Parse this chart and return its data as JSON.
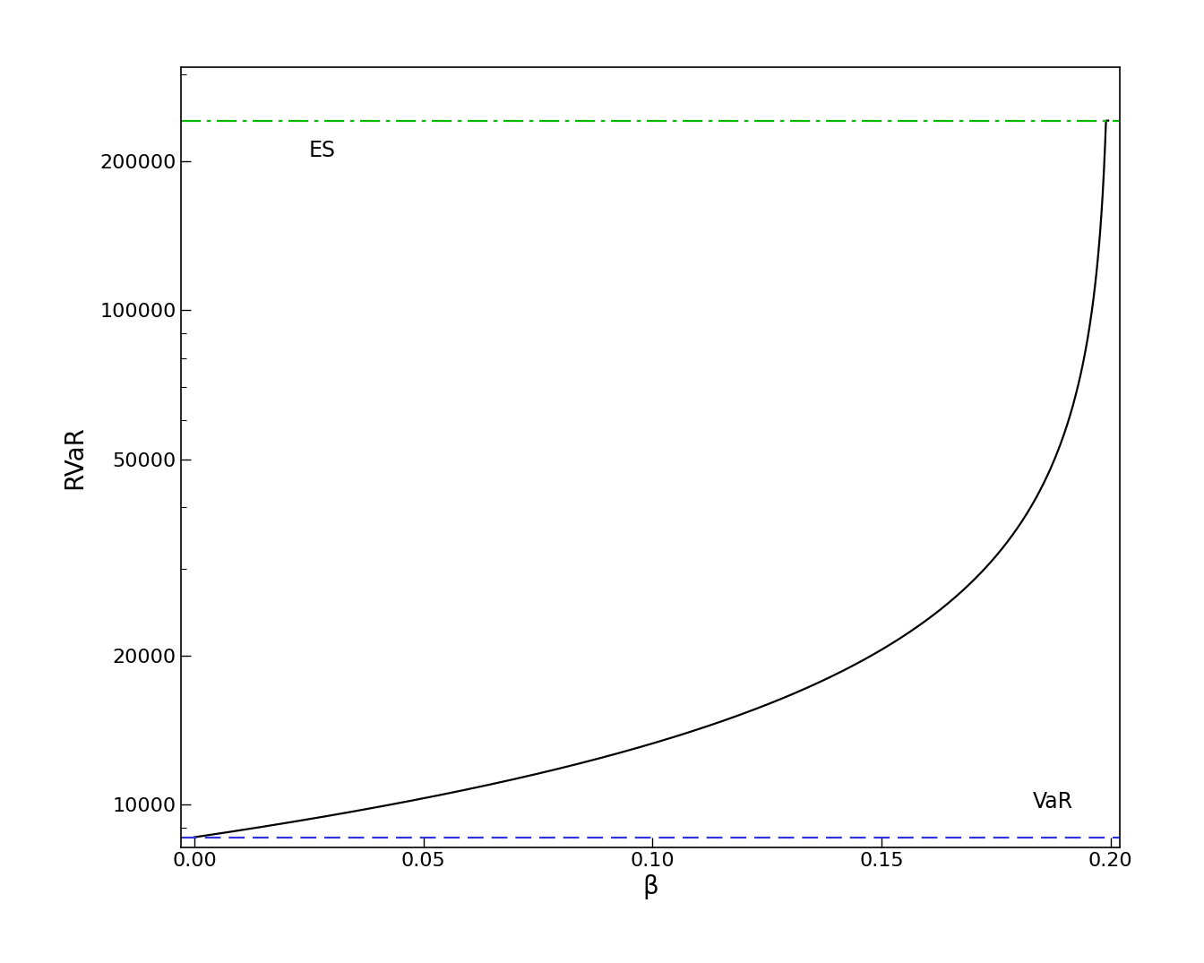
{
  "title": "",
  "xlabel": "β",
  "ylabel": "RVaR",
  "xlim": [
    -0.003,
    0.202
  ],
  "ylim_log": [
    8200,
    310000
  ],
  "x_ticks": [
    0.0,
    0.05,
    0.1,
    0.15,
    0.2
  ],
  "y_ticks": [
    10000,
    20000,
    50000,
    100000,
    200000
  ],
  "VaR": 8600,
  "ES": 242000,
  "beta_max": 0.2,
  "curve_color": "#000000",
  "var_color": "#3333dd",
  "es_color": "#00bb00",
  "var_label": "VaR",
  "es_label": "ES",
  "background_color": "#ffffff",
  "label_fontsize": 20,
  "tick_fontsize": 16,
  "annotation_fontsize": 17,
  "linewidth": 1.6,
  "ref_linewidth": 1.6
}
